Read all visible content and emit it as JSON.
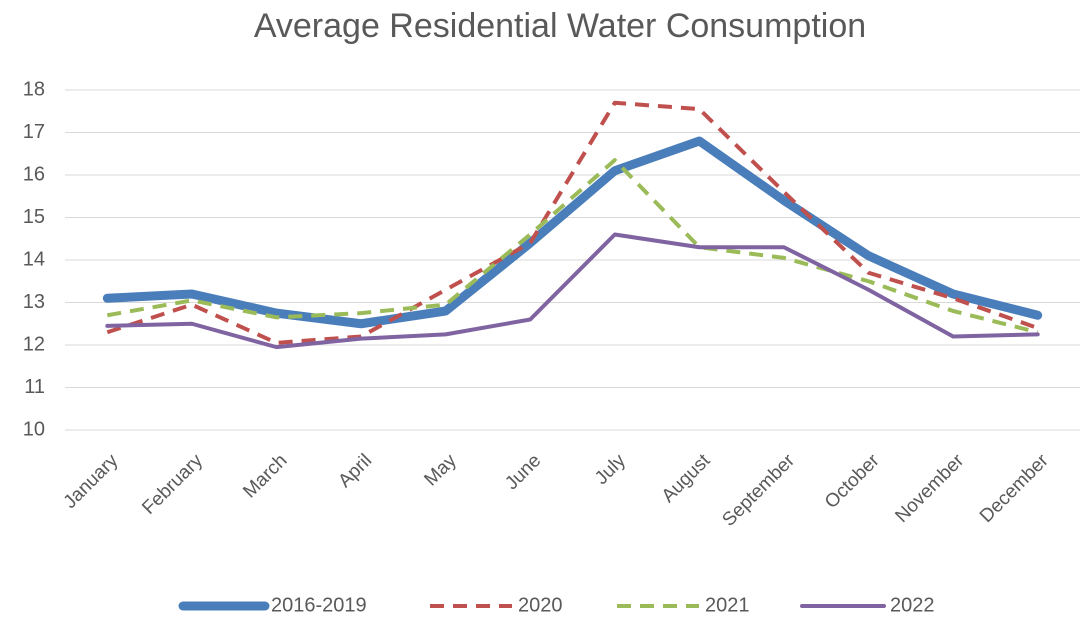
{
  "chart_data": {
    "type": "line",
    "title": "Average Residential Water Consumption",
    "categories": [
      "January",
      "February",
      "March",
      "April",
      "May",
      "June",
      "July",
      "August",
      "September",
      "October",
      "November",
      "December"
    ],
    "series": [
      {
        "name": "2016-2019",
        "color": "#4a7ebb",
        "line_style": "solid",
        "values": [
          13.1,
          13.2,
          12.75,
          12.5,
          12.8,
          14.4,
          16.1,
          16.8,
          15.4,
          14.1,
          13.2,
          12.7
        ]
      },
      {
        "name": "2020",
        "color": "#c0504d",
        "line_style": "dashed",
        "values": [
          12.3,
          12.95,
          12.05,
          12.2,
          13.3,
          14.4,
          17.7,
          17.55,
          15.6,
          13.7,
          13.1,
          12.4
        ]
      },
      {
        "name": "2021",
        "color": "#9bbb59",
        "line_style": "dashed",
        "values": [
          12.7,
          13.05,
          12.65,
          12.75,
          12.95,
          14.6,
          16.35,
          14.3,
          14.05,
          13.5,
          12.8,
          12.3
        ]
      },
      {
        "name": "2022",
        "color": "#8064a2",
        "line_style": "solid",
        "values": [
          12.45,
          12.5,
          11.95,
          12.15,
          12.25,
          12.6,
          14.6,
          14.3,
          14.3,
          13.3,
          12.2,
          12.25
        ]
      }
    ],
    "ylim": [
      10,
      18
    ],
    "yticks": [
      10,
      11,
      12,
      13,
      14,
      15,
      16,
      17,
      18
    ],
    "grid": true,
    "legend": "bottom"
  }
}
